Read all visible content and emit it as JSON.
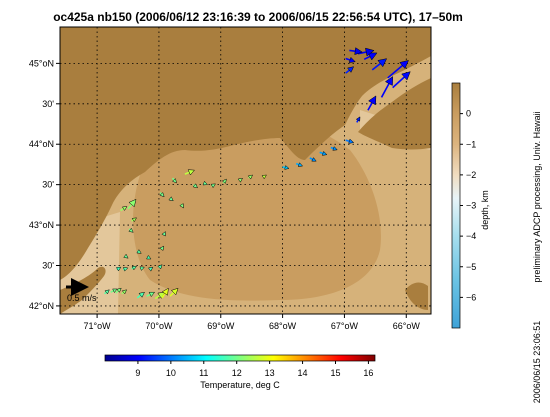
{
  "chart_data": {
    "type": "map-vectors",
    "title": "oc425a nb150 (2006/06/12 23:16:39 to 2006/06/15 22:56:54 UTC), 17–50m",
    "lon_ticks": [
      -71,
      -70,
      -69,
      -68,
      -67,
      -66
    ],
    "lon_tick_labels": [
      "71°oW",
      "70°oW",
      "69°oW",
      "68°oW",
      "67°oW",
      "66°oW"
    ],
    "lat_ticks": [
      42.0,
      42.5,
      43.0,
      43.5,
      44.0,
      44.5,
      45.0
    ],
    "lat_tick_labels": [
      "42°oN",
      "30'",
      "43°oN",
      "30'",
      "44°oN",
      "30'",
      "45°oN"
    ],
    "xlim": [
      -71.6,
      -65.6
    ],
    "ylim": [
      41.9,
      45.45
    ],
    "grid": true,
    "scale_arrow_label": "0.5 m/s",
    "scale_arrow_speed": 0.5,
    "depth_colorbar": {
      "label": "depth, km",
      "ticks": [
        0,
        -1,
        -2,
        -3,
        -4,
        -5,
        -6
      ],
      "tick_labels": [
        "0",
        "−1",
        "−2",
        "−3",
        "−4",
        "−5",
        "−6"
      ],
      "range": [
        -7,
        1
      ]
    },
    "temp_colorbar": {
      "label": "Temperature, deg C",
      "ticks": [
        9,
        10,
        11,
        12,
        13,
        14,
        15,
        16
      ],
      "range": [
        8,
        16.2
      ]
    },
    "side_note": "preliminary ADCP processing,  Univ. Hawaii",
    "timestamp": "2006/06/15 23:06:51",
    "vectors": [
      {
        "lon": -70.88,
        "lat": 42.15,
        "u": 0.06,
        "v": 0.05,
        "temp": 11.8
      },
      {
        "lon": -70.78,
        "lat": 42.17,
        "u": 0.08,
        "v": 0.04,
        "temp": 12.0
      },
      {
        "lon": -70.7,
        "lat": 42.16,
        "u": 0.07,
        "v": 0.06,
        "temp": 12.1
      },
      {
        "lon": -70.6,
        "lat": 42.15,
        "u": 0.06,
        "v": 0.05,
        "temp": 12.3
      },
      {
        "lon": -70.35,
        "lat": 42.1,
        "u": 0.09,
        "v": 0.07,
        "temp": 11.7
      },
      {
        "lon": -70.2,
        "lat": 42.12,
        "u": 0.1,
        "v": 0.05,
        "temp": 12.0
      },
      {
        "lon": -70.06,
        "lat": 42.09,
        "u": 0.12,
        "v": 0.08,
        "temp": 12.6
      },
      {
        "lon": -69.95,
        "lat": 42.1,
        "u": 0.08,
        "v": 0.12,
        "temp": 12.9
      },
      {
        "lon": -69.82,
        "lat": 42.12,
        "u": 0.1,
        "v": 0.1,
        "temp": 12.8
      },
      {
        "lon": -70.68,
        "lat": 42.45,
        "u": 0.05,
        "v": 0.03,
        "temp": 11.6
      },
      {
        "lon": -70.58,
        "lat": 42.45,
        "u": 0.06,
        "v": 0.02,
        "temp": 11.7
      },
      {
        "lon": -70.44,
        "lat": 42.46,
        "u": 0.06,
        "v": 0.03,
        "temp": 11.8
      },
      {
        "lon": -70.3,
        "lat": 42.46,
        "u": 0.05,
        "v": 0.02,
        "temp": 11.8
      },
      {
        "lon": -70.15,
        "lat": 42.45,
        "u": 0.04,
        "v": 0.03,
        "temp": 11.6
      },
      {
        "lon": -70.0,
        "lat": 42.47,
        "u": 0.04,
        "v": 0.04,
        "temp": 11.7
      },
      {
        "lon": -70.55,
        "lat": 42.62,
        "u": 0.04,
        "v": -0.03,
        "temp": 11.9
      },
      {
        "lon": -70.35,
        "lat": 42.68,
        "u": 0.05,
        "v": -0.03,
        "temp": 11.8
      },
      {
        "lon": -70.18,
        "lat": 42.6,
        "u": 0.04,
        "v": -0.02,
        "temp": 11.7
      },
      {
        "lon": -69.96,
        "lat": 42.7,
        "u": 0.03,
        "v": 0.04,
        "temp": 12.0
      },
      {
        "lon": -70.48,
        "lat": 42.95,
        "u": 0.05,
        "v": -0.04,
        "temp": 12.0
      },
      {
        "lon": -69.92,
        "lat": 42.88,
        "u": 0.02,
        "v": 0.04,
        "temp": 11.9
      },
      {
        "lon": -70.62,
        "lat": 43.18,
        "u": 0.08,
        "v": 0.05,
        "temp": 12.3
      },
      {
        "lon": -70.5,
        "lat": 43.2,
        "u": 0.1,
        "v": 0.12,
        "temp": 12.2
      },
      {
        "lon": -70.44,
        "lat": 43.05,
        "u": 0.06,
        "v": 0.04,
        "temp": 12.4
      },
      {
        "lon": -69.98,
        "lat": 43.4,
        "u": 0.05,
        "v": -0.05,
        "temp": 12.0
      },
      {
        "lon": -69.82,
        "lat": 43.33,
        "u": 0.04,
        "v": -0.03,
        "temp": 11.9
      },
      {
        "lon": -69.64,
        "lat": 43.26,
        "u": 0.03,
        "v": -0.05,
        "temp": 12.1
      },
      {
        "lon": -69.78,
        "lat": 43.58,
        "u": 0.05,
        "v": -0.06,
        "temp": 12.0
      },
      {
        "lon": -69.58,
        "lat": 43.63,
        "u": 0.12,
        "v": 0.05,
        "temp": 12.6
      },
      {
        "lon": -69.44,
        "lat": 43.5,
        "u": 0.05,
        "v": -0.04,
        "temp": 12.0
      },
      {
        "lon": -69.28,
        "lat": 43.52,
        "u": 0.05,
        "v": -0.02,
        "temp": 11.9
      },
      {
        "lon": -69.15,
        "lat": 43.48,
        "u": 0.05,
        "v": 0.03,
        "temp": 12.0
      },
      {
        "lon": -68.96,
        "lat": 43.52,
        "u": 0.04,
        "v": 0.05,
        "temp": 12.1
      },
      {
        "lon": -68.7,
        "lat": 43.55,
        "u": 0.04,
        "v": 0.03,
        "temp": 12.2
      },
      {
        "lon": -68.55,
        "lat": 43.58,
        "u": 0.05,
        "v": 0.04,
        "temp": 12.3
      },
      {
        "lon": -68.3,
        "lat": 43.6,
        "u": 0.03,
        "v": 0.02,
        "temp": 12.6
      },
      {
        "lon": -68.0,
        "lat": 43.72,
        "u": 0.08,
        "v": -0.02,
        "temp": 10.6
      },
      {
        "lon": -67.78,
        "lat": 43.76,
        "u": 0.08,
        "v": -0.03,
        "temp": 10.4
      },
      {
        "lon": -67.56,
        "lat": 43.83,
        "u": 0.08,
        "v": -0.04,
        "temp": 10.2
      },
      {
        "lon": -67.4,
        "lat": 43.9,
        "u": 0.09,
        "v": -0.03,
        "temp": 10.3
      },
      {
        "lon": -67.22,
        "lat": 43.96,
        "u": 0.08,
        "v": -0.03,
        "temp": 10.2
      },
      {
        "lon": -66.98,
        "lat": 44.05,
        "u": 0.1,
        "v": -0.03,
        "temp": 10.0
      },
      {
        "lon": -66.8,
        "lat": 44.27,
        "u": 0.04,
        "v": 0.07,
        "temp": 9.3
      },
      {
        "lon": -66.62,
        "lat": 44.42,
        "u": 0.1,
        "v": 0.18,
        "temp": 9.0
      },
      {
        "lon": -66.4,
        "lat": 44.58,
        "u": 0.14,
        "v": 0.26,
        "temp": 9.0
      },
      {
        "lon": -66.22,
        "lat": 44.7,
        "u": 0.22,
        "v": 0.2,
        "temp": 9.1
      },
      {
        "lon": -66.3,
        "lat": 44.82,
        "u": 0.26,
        "v": 0.22,
        "temp": 9.0
      },
      {
        "lon": -66.55,
        "lat": 44.92,
        "u": 0.18,
        "v": 0.14,
        "temp": 9.2
      },
      {
        "lon": -66.68,
        "lat": 45.05,
        "u": 0.16,
        "v": 0.08,
        "temp": 9.0
      },
      {
        "lon": -66.78,
        "lat": 45.12,
        "u": 0.2,
        "v": 0.04,
        "temp": 8.9
      },
      {
        "lon": -66.92,
        "lat": 45.16,
        "u": 0.16,
        "v": -0.02,
        "temp": 8.9
      },
      {
        "lon": -66.98,
        "lat": 45.06,
        "u": 0.12,
        "v": -0.04,
        "temp": 9.0
      },
      {
        "lon": -66.98,
        "lat": 44.88,
        "u": 0.1,
        "v": 0.08,
        "temp": 9.3
      }
    ]
  }
}
